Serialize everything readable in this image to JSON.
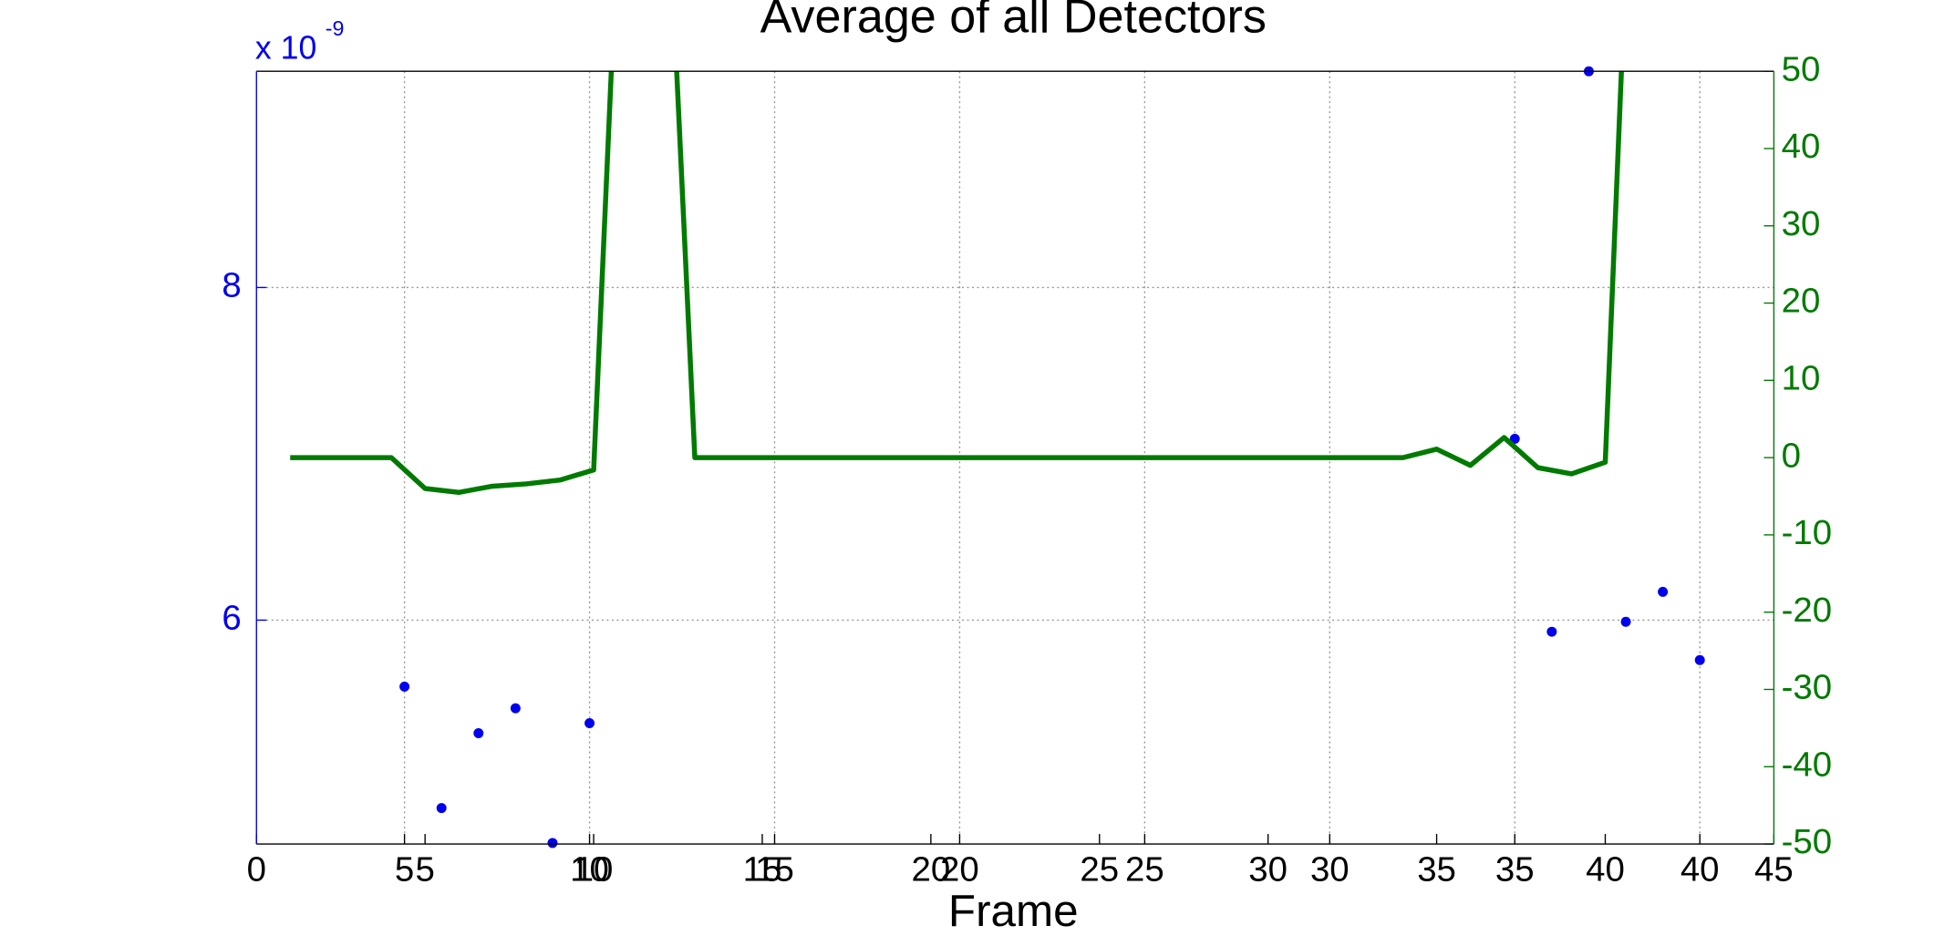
{
  "chart_data": [
    {
      "type": "scatter",
      "title": "Average of all Detectors",
      "xlabel": "Frame",
      "y_multiplier": "x 10",
      "y_multiplier_exponent": "-9",
      "xlim": [
        1,
        42
      ],
      "xticks": [
        5,
        10,
        15,
        20,
        25,
        30,
        35,
        40
      ],
      "ylim": [
        4.654,
        9.3
      ],
      "yticks": [
        6,
        8
      ],
      "grid": true,
      "series": [
        {
          "color": "#0000ee",
          "x": [
            5,
            6,
            7,
            8,
            9,
            10,
            35,
            36,
            37,
            38,
            39,
            40
          ],
          "values": [
            5.6,
            4.87,
            5.32,
            5.47,
            4.66,
            5.38,
            7.09,
            5.93,
            9.3,
            5.99,
            6.17,
            5.76
          ]
        }
      ]
    },
    {
      "type": "line",
      "xlim": [
        0,
        45
      ],
      "xticks": [
        0,
        5,
        10,
        15,
        20,
        25,
        30,
        35,
        40,
        45
      ],
      "y2lim": [
        -50,
        50
      ],
      "y2ticks": [
        -50,
        -40,
        -30,
        -20,
        -10,
        0,
        10,
        20,
        30,
        40,
        50
      ],
      "series": [
        {
          "color": "#007a00",
          "axis": "y2",
          "x": [
            1,
            2,
            3,
            4,
            5,
            6,
            7,
            8,
            9,
            10,
            11,
            12,
            13,
            14,
            15,
            16,
            17,
            18,
            19,
            20,
            21,
            22,
            23,
            24,
            25,
            26,
            27,
            28,
            29,
            30,
            31,
            32,
            33,
            34,
            35,
            36,
            37,
            38,
            39,
            40,
            41
          ],
          "values": [
            0,
            0,
            0,
            0,
            -4,
            -4.5,
            -3.7,
            -3.4,
            -2.9,
            -1.6,
            97,
            93,
            0,
            0,
            0,
            0,
            0,
            0,
            0,
            0,
            0,
            0,
            0,
            0,
            0,
            0,
            0,
            0,
            0,
            0,
            0,
            0,
            0,
            0,
            1.1,
            -1,
            2.6,
            -1.3,
            -2.1,
            -0.6,
            105
          ]
        }
      ]
    }
  ]
}
